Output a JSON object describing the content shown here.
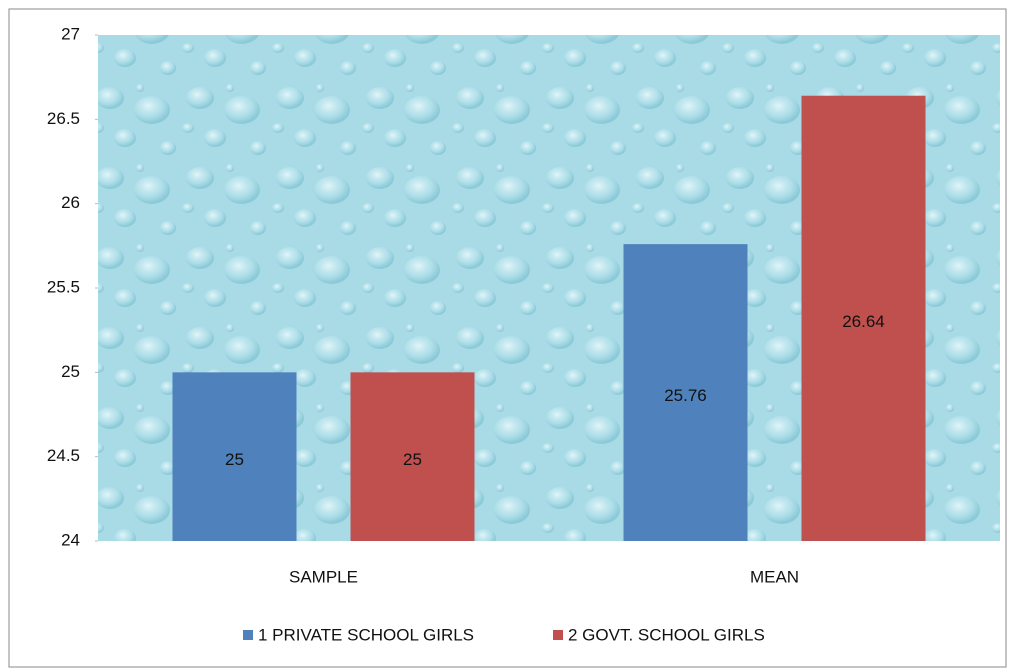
{
  "chart_data": {
    "type": "bar",
    "categories": [
      "SAMPLE",
      "MEAN"
    ],
    "series": [
      {
        "name": "1 PRIVATE SCHOOL GIRLS",
        "color": "#4f81bd",
        "values": [
          25,
          25.76
        ]
      },
      {
        "name": "2 GOVT. SCHOOL GIRLS",
        "color": "#c0504d",
        "values": [
          25,
          26.64
        ]
      }
    ],
    "ylim": [
      24,
      27
    ],
    "yticks": [
      24,
      24.5,
      25,
      25.5,
      26,
      26.5,
      27
    ],
    "grid": false,
    "legend": "bottom",
    "data_labels": true
  }
}
